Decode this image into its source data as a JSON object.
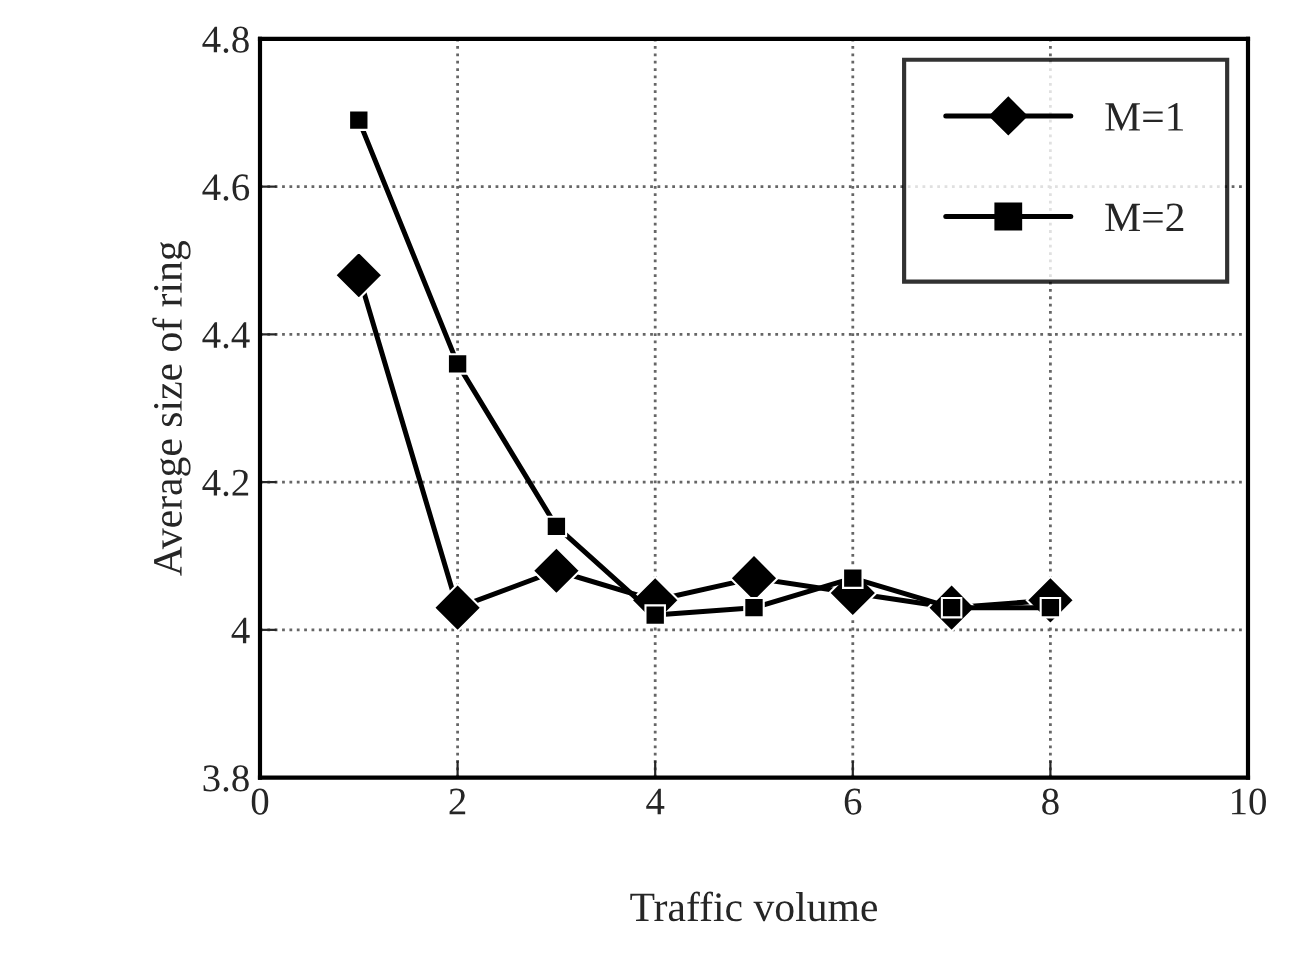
{
  "chart_data": {
    "type": "line",
    "xlabel": "Traffic volume",
    "ylabel": "Average size of ring",
    "x": [
      1,
      2,
      3,
      4,
      5,
      6,
      7,
      8
    ],
    "series": [
      {
        "name": "M=1",
        "color": "#000000",
        "marker": "diamond",
        "values": [
          4.48,
          4.03,
          4.08,
          4.04,
          4.07,
          4.05,
          4.03,
          4.04
        ]
      },
      {
        "name": "M=2",
        "color": "#000000",
        "marker": "square",
        "values": [
          4.69,
          4.36,
          4.14,
          4.02,
          4.03,
          4.07,
          4.03,
          4.03
        ]
      }
    ],
    "xlim": [
      0,
      10
    ],
    "xticks": [
      0,
      2,
      4,
      6,
      8,
      10
    ],
    "ylim": [
      3.8,
      4.8
    ],
    "yticks": [
      3.8,
      4,
      4.2,
      4.4,
      4.6,
      4.8
    ],
    "grid": true,
    "legend": "top right",
    "line_style": "solid"
  }
}
